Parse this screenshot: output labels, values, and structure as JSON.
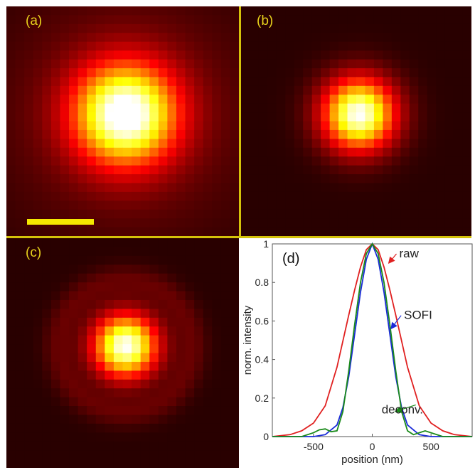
{
  "panels": {
    "a": {
      "label": "(a)",
      "scale_bar_color": "#f5e800"
    },
    "b": {
      "label": "(b)"
    },
    "c": {
      "label": "(c)"
    },
    "d": {
      "label": "(d)"
    }
  },
  "colors": {
    "heatmap_colormap": "hot",
    "divider": "#d4c20a",
    "panel_label": "#e8d21c",
    "raw": "#e02020",
    "sofi": "#1a2bd8",
    "deconv": "#1a8a1a"
  },
  "chart_data": [
    {
      "type": "heatmap",
      "panel": "(a)",
      "description_source": "raw image",
      "grid": 26,
      "spot_sigma_px": 3.8
    },
    {
      "type": "heatmap",
      "panel": "(b)",
      "grid": 26,
      "spot_sigma_px": 2.7
    },
    {
      "type": "heatmap",
      "panel": "(c)",
      "grid": 26,
      "spot_sigma_px": 2.4
    },
    {
      "type": "line",
      "panel": "(d)",
      "xlabel": "position (nm)",
      "ylabel": "norm. intensity",
      "xlim": [
        -850,
        850
      ],
      "ylim": [
        0,
        1
      ],
      "xticks": [
        -500,
        0,
        500
      ],
      "yticks": [
        0,
        0.2,
        0.4,
        0.6,
        0.8,
        1
      ],
      "ytick_labels": [
        "0",
        "0.2",
        "0.4",
        "0.6",
        "0.8",
        "1"
      ],
      "grid": false,
      "series": [
        {
          "name": "raw",
          "color": "#e02020",
          "x": [
            -850,
            -700,
            -600,
            -500,
            -400,
            -300,
            -200,
            -150,
            -100,
            -50,
            0,
            50,
            100,
            150,
            200,
            300,
            400,
            500,
            600,
            700,
            850
          ],
          "y": [
            0.0,
            0.01,
            0.03,
            0.07,
            0.16,
            0.36,
            0.63,
            0.76,
            0.88,
            0.97,
            1.0,
            0.97,
            0.88,
            0.76,
            0.63,
            0.36,
            0.16,
            0.07,
            0.03,
            0.01,
            0.0
          ]
        },
        {
          "name": "SOFI",
          "color": "#1a2bd8",
          "x": [
            -850,
            -500,
            -400,
            -300,
            -250,
            -200,
            -150,
            -100,
            -50,
            0,
            50,
            100,
            150,
            200,
            250,
            300,
            400,
            500,
            850
          ],
          "y": [
            0.0,
            0.0,
            0.01,
            0.06,
            0.15,
            0.31,
            0.53,
            0.75,
            0.92,
            1.0,
            0.92,
            0.75,
            0.53,
            0.31,
            0.15,
            0.06,
            0.01,
            0.0,
            0.0
          ]
        },
        {
          "name": "deconv.",
          "color": "#1a8a1a",
          "x": [
            -850,
            -600,
            -500,
            -450,
            -400,
            -350,
            -300,
            -250,
            -200,
            -150,
            -100,
            -50,
            0,
            50,
            100,
            150,
            200,
            250,
            300,
            350,
            400,
            450,
            500,
            600,
            850
          ],
          "y": [
            0.0,
            0.0,
            0.02,
            0.035,
            0.04,
            0.025,
            0.03,
            0.13,
            0.34,
            0.58,
            0.8,
            0.95,
            1.0,
            0.95,
            0.8,
            0.58,
            0.34,
            0.13,
            0.03,
            0.01,
            0.02,
            0.03,
            0.02,
            0.0,
            0.0
          ]
        }
      ],
      "annotations": [
        {
          "text": "raw",
          "series": "raw",
          "point_x": 140,
          "point_y": 0.9,
          "text_x": 230,
          "text_y": 0.93
        },
        {
          "text": "SOFI",
          "series": "SOFI",
          "point_x": 160,
          "point_y": 0.56,
          "text_x": 270,
          "text_y": 0.61
        },
        {
          "text": "deconv.",
          "series": "deconv.",
          "point_x": 195,
          "point_y": 0.13,
          "text_x": 80,
          "text_y": 0.12
        }
      ]
    }
  ]
}
